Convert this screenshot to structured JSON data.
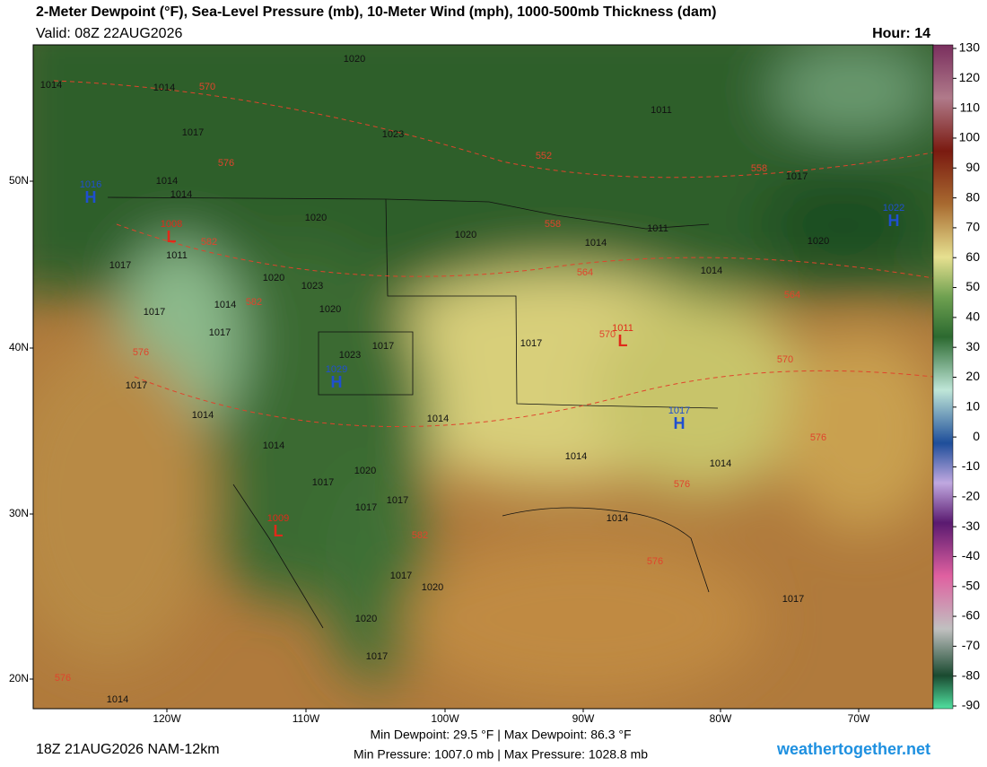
{
  "header": {
    "title": "2-Meter Dewpoint (°F), Sea-Level Pressure (mb), 10-Meter Wind (mph), 1000-500mb Thickness (dam)",
    "valid": "Valid: 08Z 22AUG2026",
    "hour": "Hour: 14"
  },
  "colorbar": {
    "ticks": [
      130,
      120,
      110,
      100,
      90,
      80,
      70,
      60,
      50,
      40,
      30,
      20,
      10,
      0,
      -10,
      -20,
      -30,
      -40,
      -50,
      -60,
      -70,
      -80,
      -90
    ]
  },
  "axes": {
    "latitudes": [
      "50N",
      "40N",
      "30N",
      "20N"
    ],
    "longitudes": [
      "120W",
      "110W",
      "100W",
      "90W",
      "80W",
      "70W"
    ]
  },
  "map": {
    "isobars": [
      "1020",
      "1014",
      "1014",
      "1017",
      "1023",
      "1011",
      "1014",
      "1014",
      "1017",
      "1020",
      "1020",
      "1020",
      "1011",
      "1014",
      "1011",
      "1014",
      "1017",
      "1020",
      "1023",
      "1020",
      "1014",
      "1017",
      "1017",
      "1017",
      "1017",
      "1023",
      "1014",
      "1014",
      "1014",
      "1014",
      "1014",
      "1020",
      "1017",
      "1017",
      "1017",
      "1014",
      "1017",
      "1020",
      "1020",
      "1017",
      "1017",
      "1014",
      "1017"
    ],
    "thickness": [
      "570",
      "576",
      "552",
      "558",
      "558",
      "582",
      "564",
      "564",
      "582",
      "570",
      "576",
      "570",
      "576",
      "576",
      "582",
      "576",
      "576"
    ],
    "centers": [
      {
        "symbol": "H",
        "pressure": "1016"
      },
      {
        "symbol": "L",
        "pressure": "1008"
      },
      {
        "symbol": "H",
        "pressure": "1029"
      },
      {
        "symbol": "L",
        "pressure": "1011"
      },
      {
        "symbol": "H",
        "pressure": "1017"
      },
      {
        "symbol": "H",
        "pressure": "1022"
      },
      {
        "symbol": "L",
        "pressure": "1009"
      }
    ]
  },
  "footer": {
    "run": "18Z 21AUG2026 NAM-12km",
    "dewpoint": "Min Dewpoint:  29.5 °F | Max Dewpoint:  86.3 °F",
    "pressure": "Min Pressure: 1007.0 mb | Max Pressure: 1028.8 mb",
    "site": "weathertogether.net"
  }
}
